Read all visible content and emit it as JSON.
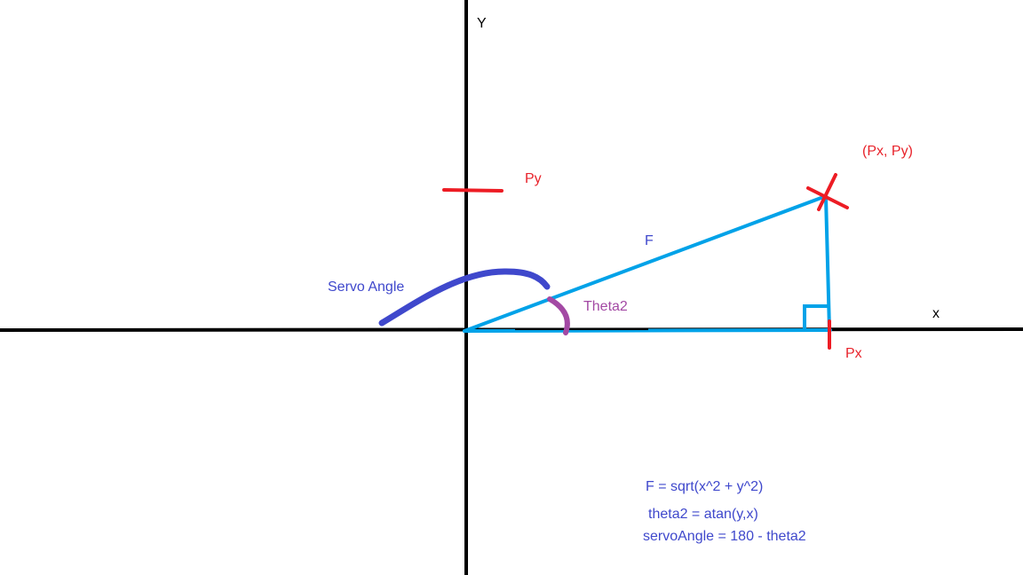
{
  "labels": {
    "y_axis": "Y",
    "x_axis": "x",
    "point": "(Px, Py)",
    "py": "Py",
    "px": "Px",
    "f": "F",
    "servo_angle": "Servo Angle",
    "theta2": "Theta2"
  },
  "formulas": {
    "f": "F = sqrt(x^2 + y^2)",
    "theta2": "theta2 = atan(y,x)",
    "servo": "servoAngle = 180 - theta2"
  },
  "colors": {
    "axis": "#000000",
    "triangle": "#00a2e8",
    "marker": "#ed1c24",
    "servo_arc": "#3f48cc",
    "theta_arc": "#a349a4",
    "text_red": "#e8232b",
    "text_blue": "#3f48cc",
    "text_purple": "#a349a4"
  }
}
